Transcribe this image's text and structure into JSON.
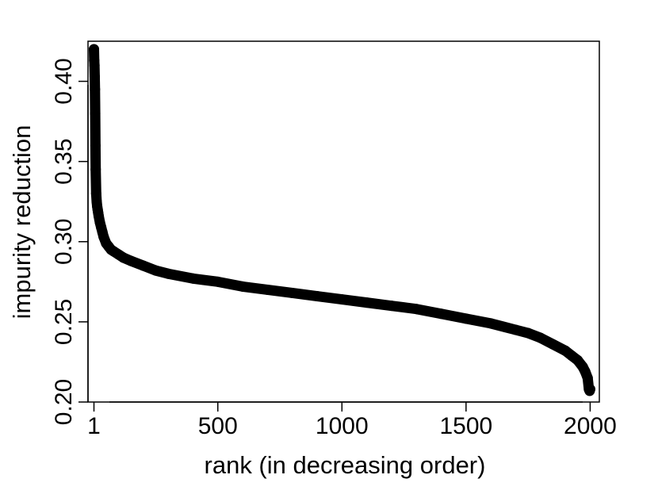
{
  "chart_data": {
    "type": "scatter",
    "title": "",
    "xlabel": "rank (in decreasing order)",
    "ylabel": "impurity reduction",
    "xlim": [
      -23,
      2037
    ],
    "ylim": [
      0.2,
      0.425
    ],
    "x_ticks": [
      1,
      500,
      1000,
      1500,
      2000
    ],
    "x_tick_labels": [
      "1",
      "500",
      "1000",
      "1500",
      "2000"
    ],
    "y_ticks": [
      0.2,
      0.25,
      0.3,
      0.35,
      0.4
    ],
    "y_tick_labels": [
      "0.20",
      "0.25",
      "0.30",
      "0.35",
      "0.40"
    ],
    "grid": false,
    "legend": "none",
    "marker_color": "#000000",
    "series": [
      {
        "x": [
          1,
          2,
          3,
          4,
          5,
          6,
          7,
          8,
          10,
          12,
          14,
          16,
          18,
          20,
          25,
          30,
          35,
          40,
          50,
          60,
          70,
          80,
          100,
          120,
          150,
          200,
          250,
          300,
          400,
          500,
          600,
          700,
          800,
          900,
          1000,
          1100,
          1200,
          1300,
          1400,
          1500,
          1600,
          1700,
          1750,
          1800,
          1850,
          1900,
          1925,
          1950,
          1970,
          1980,
          1990,
          1995,
          1998,
          2000
        ],
        "y": [
          0.42,
          0.413,
          0.41,
          0.403,
          0.395,
          0.38,
          0.36,
          0.345,
          0.33,
          0.325,
          0.322,
          0.32,
          0.318,
          0.316,
          0.312,
          0.309,
          0.306,
          0.303,
          0.299,
          0.297,
          0.295,
          0.294,
          0.292,
          0.29,
          0.288,
          0.285,
          0.282,
          0.28,
          0.277,
          0.275,
          0.272,
          0.27,
          0.268,
          0.266,
          0.264,
          0.262,
          0.26,
          0.258,
          0.255,
          0.252,
          0.249,
          0.245,
          0.243,
          0.24,
          0.236,
          0.232,
          0.229,
          0.226,
          0.222,
          0.219,
          0.215,
          0.208,
          0.207,
          0.208
        ]
      }
    ]
  }
}
